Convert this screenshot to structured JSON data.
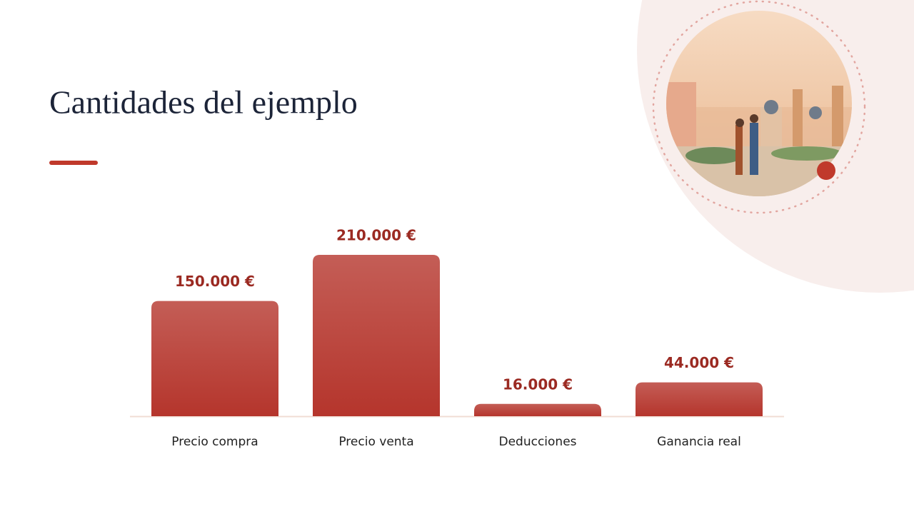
{
  "chart_data": {
    "type": "bar",
    "title": "Cantidades del ejemplo",
    "categories": [
      "Precio compra",
      "Precio venta",
      "Deducciones",
      "Ganancia real"
    ],
    "values": [
      150000,
      210000,
      16000,
      44000
    ],
    "value_labels": [
      "150.000 €",
      "210.000 €",
      "16.000 €",
      "44.000 €"
    ],
    "color": "#b5352c"
  }
}
